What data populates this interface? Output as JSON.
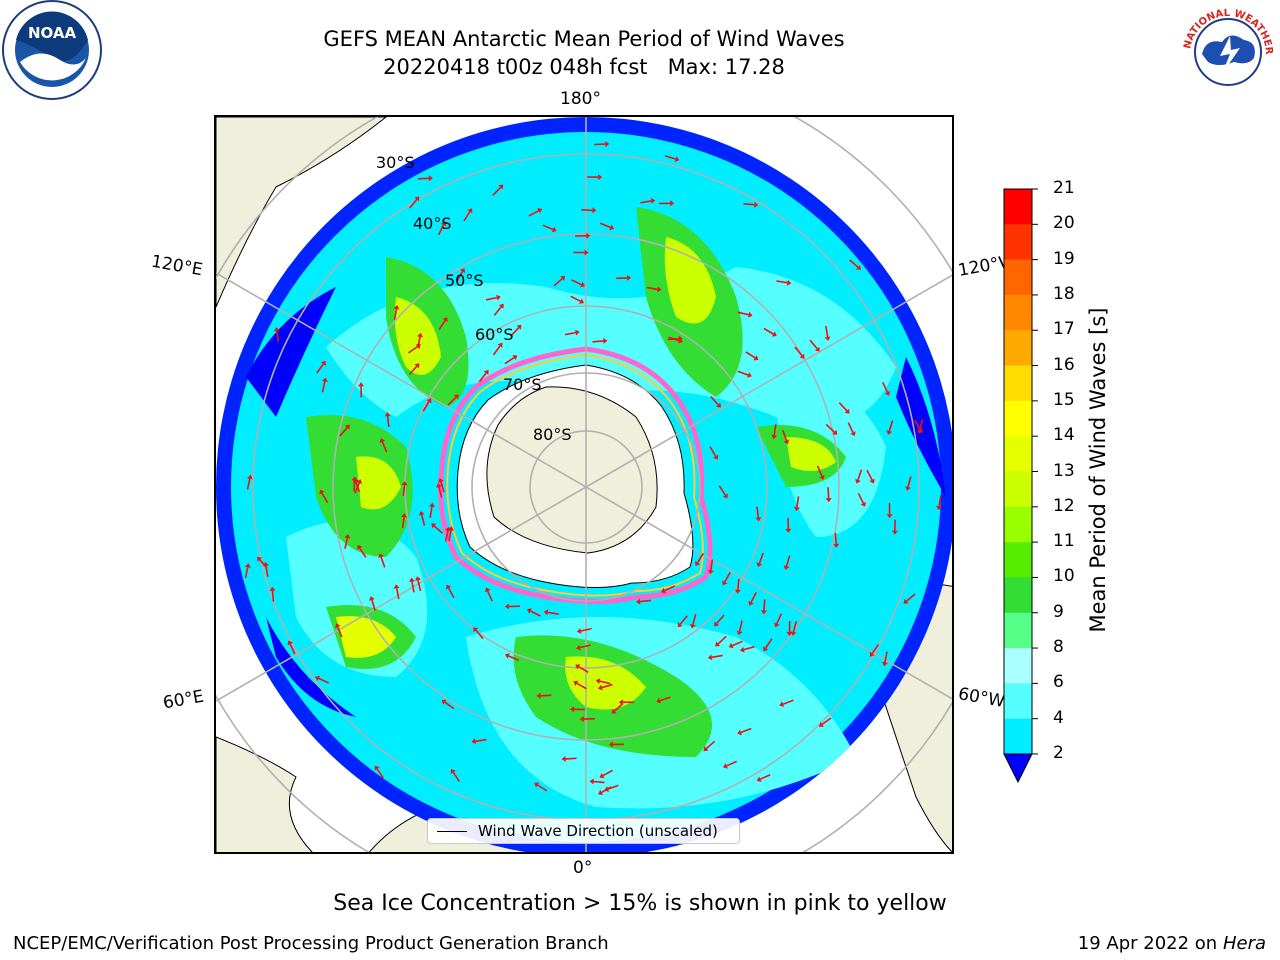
{
  "title": {
    "line1": "GEFS MEAN Antarctic Mean Period of Wind Waves",
    "line2": "20220418 t00z 048h fcst   Max: 17.28"
  },
  "map": {
    "projection": "south-polar-stereographic",
    "longitude_labels": [
      "180°",
      "120°E",
      "120°W",
      "60°E",
      "60°W",
      "0°"
    ],
    "latitude_labels": [
      "30°S",
      "40°S",
      "50°S",
      "60°S",
      "70°S",
      "80°S"
    ],
    "land_color": "#efefdb",
    "sea_ice_colors": [
      "#ff66cc",
      "#ffcc33"
    ],
    "vector_color": "#ee1111"
  },
  "colorbar": {
    "label": "Mean Period of Wind Waves [s]",
    "ticks": [
      "21",
      "20",
      "19",
      "18",
      "17",
      "16",
      "15",
      "14",
      "13",
      "12",
      "11",
      "10",
      "9",
      "8",
      "6",
      "4",
      "2"
    ],
    "colors_top_to_bottom": [
      "#ff0000",
      "#ff3300",
      "#ff6600",
      "#ff8800",
      "#ffaa00",
      "#ffdd00",
      "#ffff00",
      "#e6ff00",
      "#ccff00",
      "#99ff00",
      "#55ee00",
      "#33dd33",
      "#55ff88",
      "#aaffff",
      "#55ffff",
      "#00eeff",
      "#0077ff",
      "#0000ff"
    ],
    "extend": "min"
  },
  "legend": {
    "label": "Wind Wave Direction (unscaled)"
  },
  "subnote": "Sea Ice Concentration > 15% is shown in pink to yellow",
  "footer": {
    "left": "NCEP/EMC/Verification Post Processing Product Generation Branch",
    "date": "19 Apr 2022 on",
    "machine": "Hera"
  },
  "logos": {
    "left": {
      "name": "noaa-logo",
      "text": "NOAA"
    },
    "right": {
      "name": "nws-logo",
      "text": "NATIONAL WEATHER SERVICE"
    }
  }
}
